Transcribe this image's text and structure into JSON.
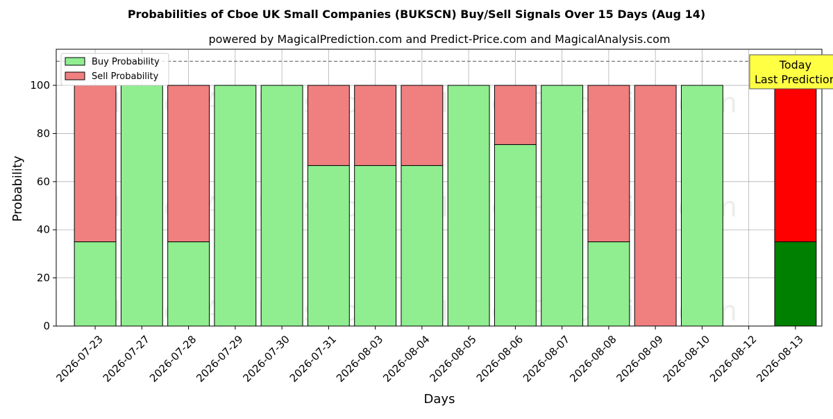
{
  "chart_data": {
    "type": "bar",
    "stacked": true,
    "title": "Probabilities of Cboe UK Small Companies (BUKSCN) Buy/Sell Signals Over 15 Days (Aug 14)",
    "subtitle": "powered by MagicalPrediction.com and Predict-Price.com and MagicalAnalysis.com",
    "xlabel": "Days",
    "ylabel": "Probability",
    "ylim": [
      0,
      115
    ],
    "yticks": [
      0,
      20,
      40,
      60,
      80,
      100
    ],
    "reference_line": 110,
    "grid": true,
    "legend_position": "top-left",
    "categories": [
      "2026-07-23",
      "2026-07-27",
      "2026-07-28",
      "2026-07-29",
      "2026-07-30",
      "2026-07-31",
      "2026-08-03",
      "2026-08-04",
      "2026-08-05",
      "2026-08-06",
      "2026-08-07",
      "2026-08-08",
      "2026-08-09",
      "2026-08-10",
      "2026-08-12",
      "2026-08-13"
    ],
    "series": [
      {
        "name": "Buy Probability",
        "color": "#90ee90",
        "highlight_color": "#008000",
        "values": [
          35,
          100,
          35,
          100,
          100,
          66.7,
          66.7,
          66.7,
          100,
          75.4,
          100,
          35,
          0,
          100,
          null,
          35
        ]
      },
      {
        "name": "Sell Probability",
        "color": "#f08080",
        "highlight_color": "#ff0000",
        "values": [
          65,
          0,
          65,
          0,
          0,
          33.3,
          33.3,
          33.3,
          0,
          24.6,
          0,
          65,
          100,
          0,
          null,
          65
        ]
      }
    ],
    "highlight_category": "2026-08-13",
    "annotation": {
      "line1": "Today",
      "line2": "Last Prediction",
      "bg": "#ffff44"
    },
    "watermarks": [
      "MagicalAnalysis.com",
      "MagicalPrediction.com"
    ]
  }
}
